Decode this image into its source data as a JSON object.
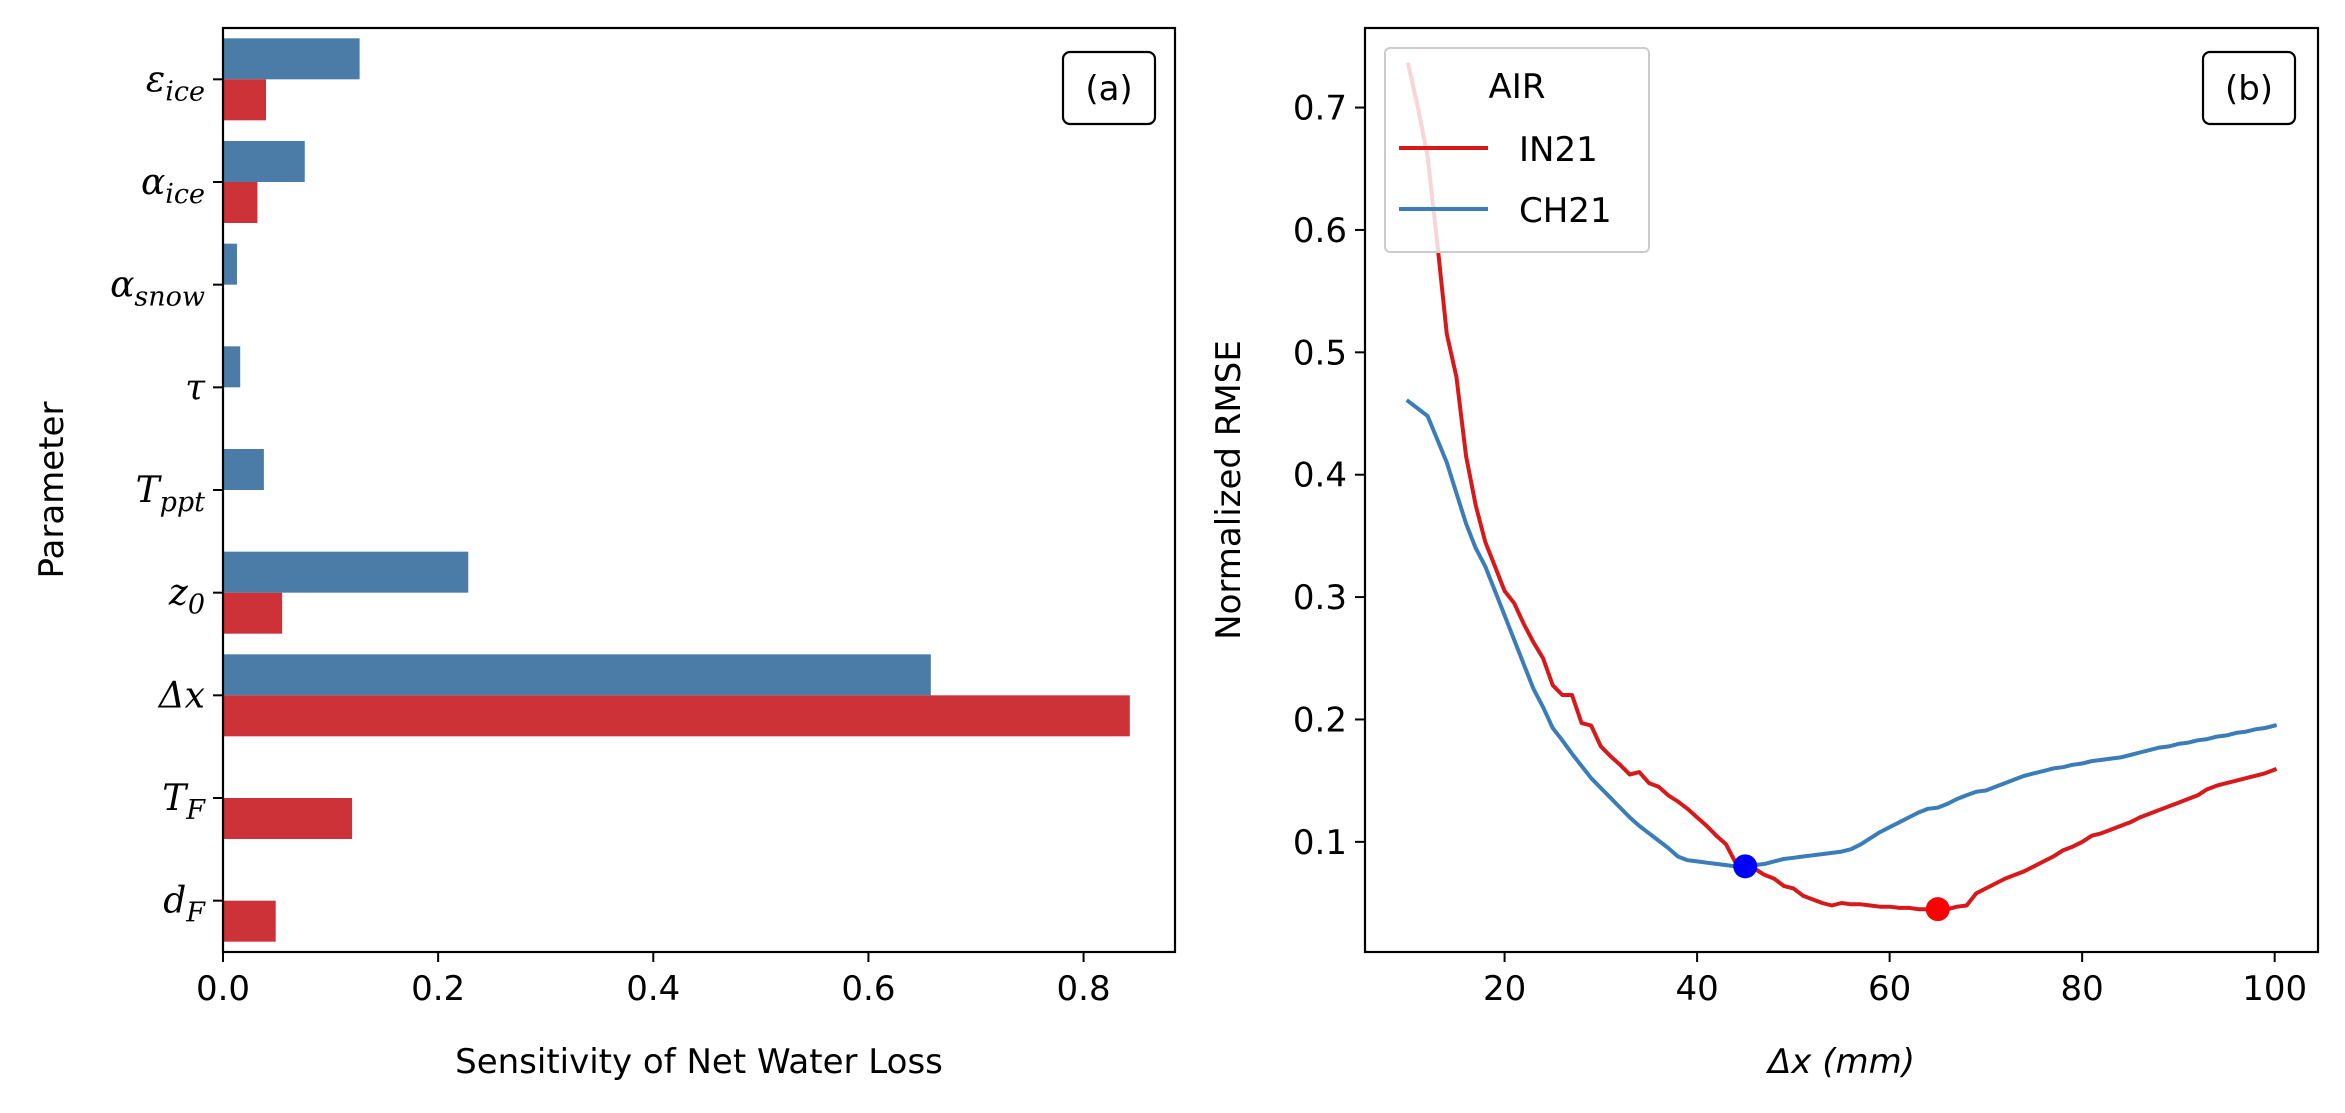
{
  "chart_data": [
    {
      "type": "bar",
      "orientation": "horizontal",
      "panel_tag": "(a)",
      "xlabel": "Sensitivity of Net Water Loss",
      "ylabel": "Parameter",
      "xlim": [
        0,
        0.885
      ],
      "xticks": [
        "0.0",
        "0.2",
        "0.4",
        "0.6",
        "0.8"
      ],
      "categories": [
        {
          "id": "eps_ice",
          "main": "ε",
          "sub": "ice"
        },
        {
          "id": "alpha_ice",
          "main": "α",
          "sub": "ice"
        },
        {
          "id": "alpha_snow",
          "main": "α",
          "sub": "snow"
        },
        {
          "id": "tau",
          "main": "τ",
          "sub": ""
        },
        {
          "id": "T_ppt",
          "main": "T",
          "sub": "ppt"
        },
        {
          "id": "z0",
          "main": "z",
          "sub": "0"
        },
        {
          "id": "dx",
          "main": "Δx",
          "sub": ""
        },
        {
          "id": "T_F",
          "main": "T",
          "sub": "F"
        },
        {
          "id": "d_F",
          "main": "d",
          "sub": "F"
        }
      ],
      "series": [
        {
          "color": "#4a7ca7",
          "values": [
            0.127,
            0.076,
            0.013,
            0.016,
            0.038,
            0.228,
            0.658,
            0,
            0
          ]
        },
        {
          "color": "#cc3237",
          "values": [
            0.04,
            0.032,
            0,
            0,
            0,
            0.055,
            0.843,
            0.12,
            0.049
          ]
        }
      ]
    },
    {
      "type": "line",
      "panel_tag": "(b)",
      "xlabel_main": "Δx",
      "xlabel_unit": "(mm)",
      "ylabel": "Normalized RMSE",
      "xlim": [
        5.5,
        104.5
      ],
      "ylim": [
        0.01,
        0.765
      ],
      "xticks": [
        "20",
        "40",
        "60",
        "80",
        "100"
      ],
      "yticks": [
        "0.1",
        "0.2",
        "0.3",
        "0.4",
        "0.5",
        "0.6",
        "0.7"
      ],
      "legend": {
        "title": "AIR",
        "placement": "upper left"
      },
      "series": [
        {
          "name": "IN21",
          "color": "#d7191c",
          "points": [
            [
              10,
              0.735
            ],
            [
              11,
              0.7
            ],
            [
              12,
              0.66
            ],
            [
              13,
              0.59
            ],
            [
              14,
              0.515
            ],
            [
              15,
              0.48
            ],
            [
              16,
              0.415
            ],
            [
              17,
              0.375
            ],
            [
              18,
              0.345
            ],
            [
              19,
              0.325
            ],
            [
              20,
              0.305
            ],
            [
              21,
              0.295
            ],
            [
              22,
              0.278
            ],
            [
              23,
              0.263
            ],
            [
              24,
              0.25
            ],
            [
              25,
              0.228
            ],
            [
              26,
              0.22
            ],
            [
              27,
              0.22
            ],
            [
              28,
              0.197
            ],
            [
              29,
              0.195
            ],
            [
              30,
              0.178
            ],
            [
              31,
              0.17
            ],
            [
              32,
              0.163
            ],
            [
              33,
              0.155
            ],
            [
              34,
              0.157
            ],
            [
              35,
              0.148
            ],
            [
              36,
              0.145
            ],
            [
              37,
              0.138
            ],
            [
              38,
              0.133
            ],
            [
              39,
              0.127
            ],
            [
              40,
              0.12
            ],
            [
              41,
              0.113
            ],
            [
              42,
              0.105
            ],
            [
              43,
              0.098
            ],
            [
              44,
              0.083
            ],
            [
              45,
              0.081
            ],
            [
              46,
              0.078
            ],
            [
              47,
              0.073
            ],
            [
              48,
              0.07
            ],
            [
              49,
              0.064
            ],
            [
              50,
              0.062
            ],
            [
              51,
              0.056
            ],
            [
              52,
              0.053
            ],
            [
              53,
              0.05
            ],
            [
              54,
              0.048
            ],
            [
              55,
              0.05
            ],
            [
              56,
              0.049
            ],
            [
              57,
              0.049
            ],
            [
              58,
              0.048
            ],
            [
              59,
              0.047
            ],
            [
              60,
              0.047
            ],
            [
              61,
              0.046
            ],
            [
              62,
              0.046
            ],
            [
              63,
              0.045
            ],
            [
              64,
              0.045
            ],
            [
              65,
              0.045
            ],
            [
              66,
              0.045
            ],
            [
              67,
              0.047
            ],
            [
              68,
              0.048
            ],
            [
              69,
              0.058
            ],
            [
              70,
              0.062
            ],
            [
              71,
              0.066
            ],
            [
              72,
              0.07
            ],
            [
              73,
              0.073
            ],
            [
              74,
              0.076
            ],
            [
              75,
              0.08
            ],
            [
              76,
              0.084
            ],
            [
              77,
              0.088
            ],
            [
              78,
              0.093
            ],
            [
              79,
              0.096
            ],
            [
              80,
              0.1
            ],
            [
              81,
              0.105
            ],
            [
              82,
              0.107
            ],
            [
              83,
              0.11
            ],
            [
              84,
              0.113
            ],
            [
              85,
              0.116
            ],
            [
              86,
              0.12
            ],
            [
              87,
              0.123
            ],
            [
              88,
              0.126
            ],
            [
              89,
              0.129
            ],
            [
              90,
              0.132
            ],
            [
              91,
              0.135
            ],
            [
              92,
              0.138
            ],
            [
              93,
              0.143
            ],
            [
              94,
              0.146
            ],
            [
              95,
              0.148
            ],
            [
              96,
              0.15
            ],
            [
              97,
              0.152
            ],
            [
              98,
              0.154
            ],
            [
              99,
              0.156
            ],
            [
              100,
              0.159
            ]
          ]
        },
        {
          "name": "CH21",
          "color": "#3a7db8",
          "points": [
            [
              10,
              0.46
            ],
            [
              12,
              0.448
            ],
            [
              14,
              0.41
            ],
            [
              15,
              0.385
            ],
            [
              16,
              0.36
            ],
            [
              17,
              0.34
            ],
            [
              18,
              0.325
            ],
            [
              19,
              0.305
            ],
            [
              20,
              0.285
            ],
            [
              21,
              0.265
            ],
            [
              22,
              0.245
            ],
            [
              23,
              0.225
            ],
            [
              24,
              0.21
            ],
            [
              25,
              0.193
            ],
            [
              26,
              0.183
            ],
            [
              27,
              0.172
            ],
            [
              28,
              0.162
            ],
            [
              29,
              0.152
            ],
            [
              30,
              0.144
            ],
            [
              31,
              0.136
            ],
            [
              32,
              0.128
            ],
            [
              33,
              0.12
            ],
            [
              34,
              0.113
            ],
            [
              35,
              0.107
            ],
            [
              36,
              0.101
            ],
            [
              37,
              0.095
            ],
            [
              38,
              0.088
            ],
            [
              39,
              0.085
            ],
            [
              40,
              0.084
            ],
            [
              41,
              0.083
            ],
            [
              42,
              0.082
            ],
            [
              43,
              0.081
            ],
            [
              44,
              0.08
            ],
            [
              45,
              0.08
            ],
            [
              46,
              0.081
            ],
            [
              47,
              0.082
            ],
            [
              48,
              0.084
            ],
            [
              49,
              0.086
            ],
            [
              50,
              0.087
            ],
            [
              51,
              0.088
            ],
            [
              52,
              0.089
            ],
            [
              53,
              0.09
            ],
            [
              54,
              0.091
            ],
            [
              55,
              0.092
            ],
            [
              56,
              0.094
            ],
            [
              57,
              0.098
            ],
            [
              58,
              0.103
            ],
            [
              59,
              0.108
            ],
            [
              60,
              0.112
            ],
            [
              61,
              0.116
            ],
            [
              62,
              0.12
            ],
            [
              63,
              0.124
            ],
            [
              64,
              0.127
            ],
            [
              65,
              0.128
            ],
            [
              66,
              0.131
            ],
            [
              67,
              0.135
            ],
            [
              68,
              0.138
            ],
            [
              69,
              0.141
            ],
            [
              70,
              0.142
            ],
            [
              71,
              0.145
            ],
            [
              72,
              0.148
            ],
            [
              73,
              0.151
            ],
            [
              74,
              0.154
            ],
            [
              75,
              0.156
            ],
            [
              76,
              0.158
            ],
            [
              77,
              0.16
            ],
            [
              78,
              0.161
            ],
            [
              79,
              0.163
            ],
            [
              80,
              0.164
            ],
            [
              81,
              0.166
            ],
            [
              82,
              0.167
            ],
            [
              83,
              0.168
            ],
            [
              84,
              0.169
            ],
            [
              85,
              0.171
            ],
            [
              86,
              0.173
            ],
            [
              87,
              0.175
            ],
            [
              88,
              0.177
            ],
            [
              89,
              0.178
            ],
            [
              90,
              0.18
            ],
            [
              91,
              0.181
            ],
            [
              92,
              0.183
            ],
            [
              93,
              0.184
            ],
            [
              94,
              0.186
            ],
            [
              95,
              0.187
            ],
            [
              96,
              0.189
            ],
            [
              97,
              0.19
            ],
            [
              98,
              0.192
            ],
            [
              99,
              0.193
            ],
            [
              100,
              0.195
            ]
          ]
        }
      ],
      "markers": [
        {
          "series": "CH21",
          "x": 45,
          "y": 0.08,
          "color": "#0000ff"
        },
        {
          "series": "IN21",
          "x": 65,
          "y": 0.045,
          "color": "#ff0000"
        }
      ]
    }
  ]
}
